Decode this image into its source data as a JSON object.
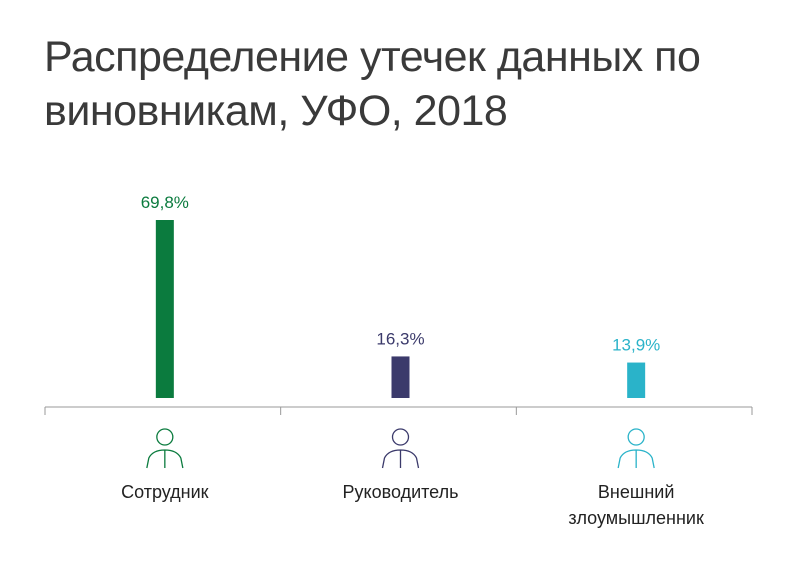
{
  "chart_data": {
    "type": "bar",
    "title": "Распределение утечек данных по виновникам, УФО, 2018",
    "categories": [
      "Сотрудник",
      "Руководитель",
      "Внешний злоумышленник"
    ],
    "values": [
      69.8,
      16.3,
      13.9
    ],
    "value_labels": [
      "69,8%",
      "16,3%",
      "13,9%"
    ],
    "colors": [
      "#0b7b3e",
      "#3b3a6b",
      "#2ab3c9"
    ]
  }
}
